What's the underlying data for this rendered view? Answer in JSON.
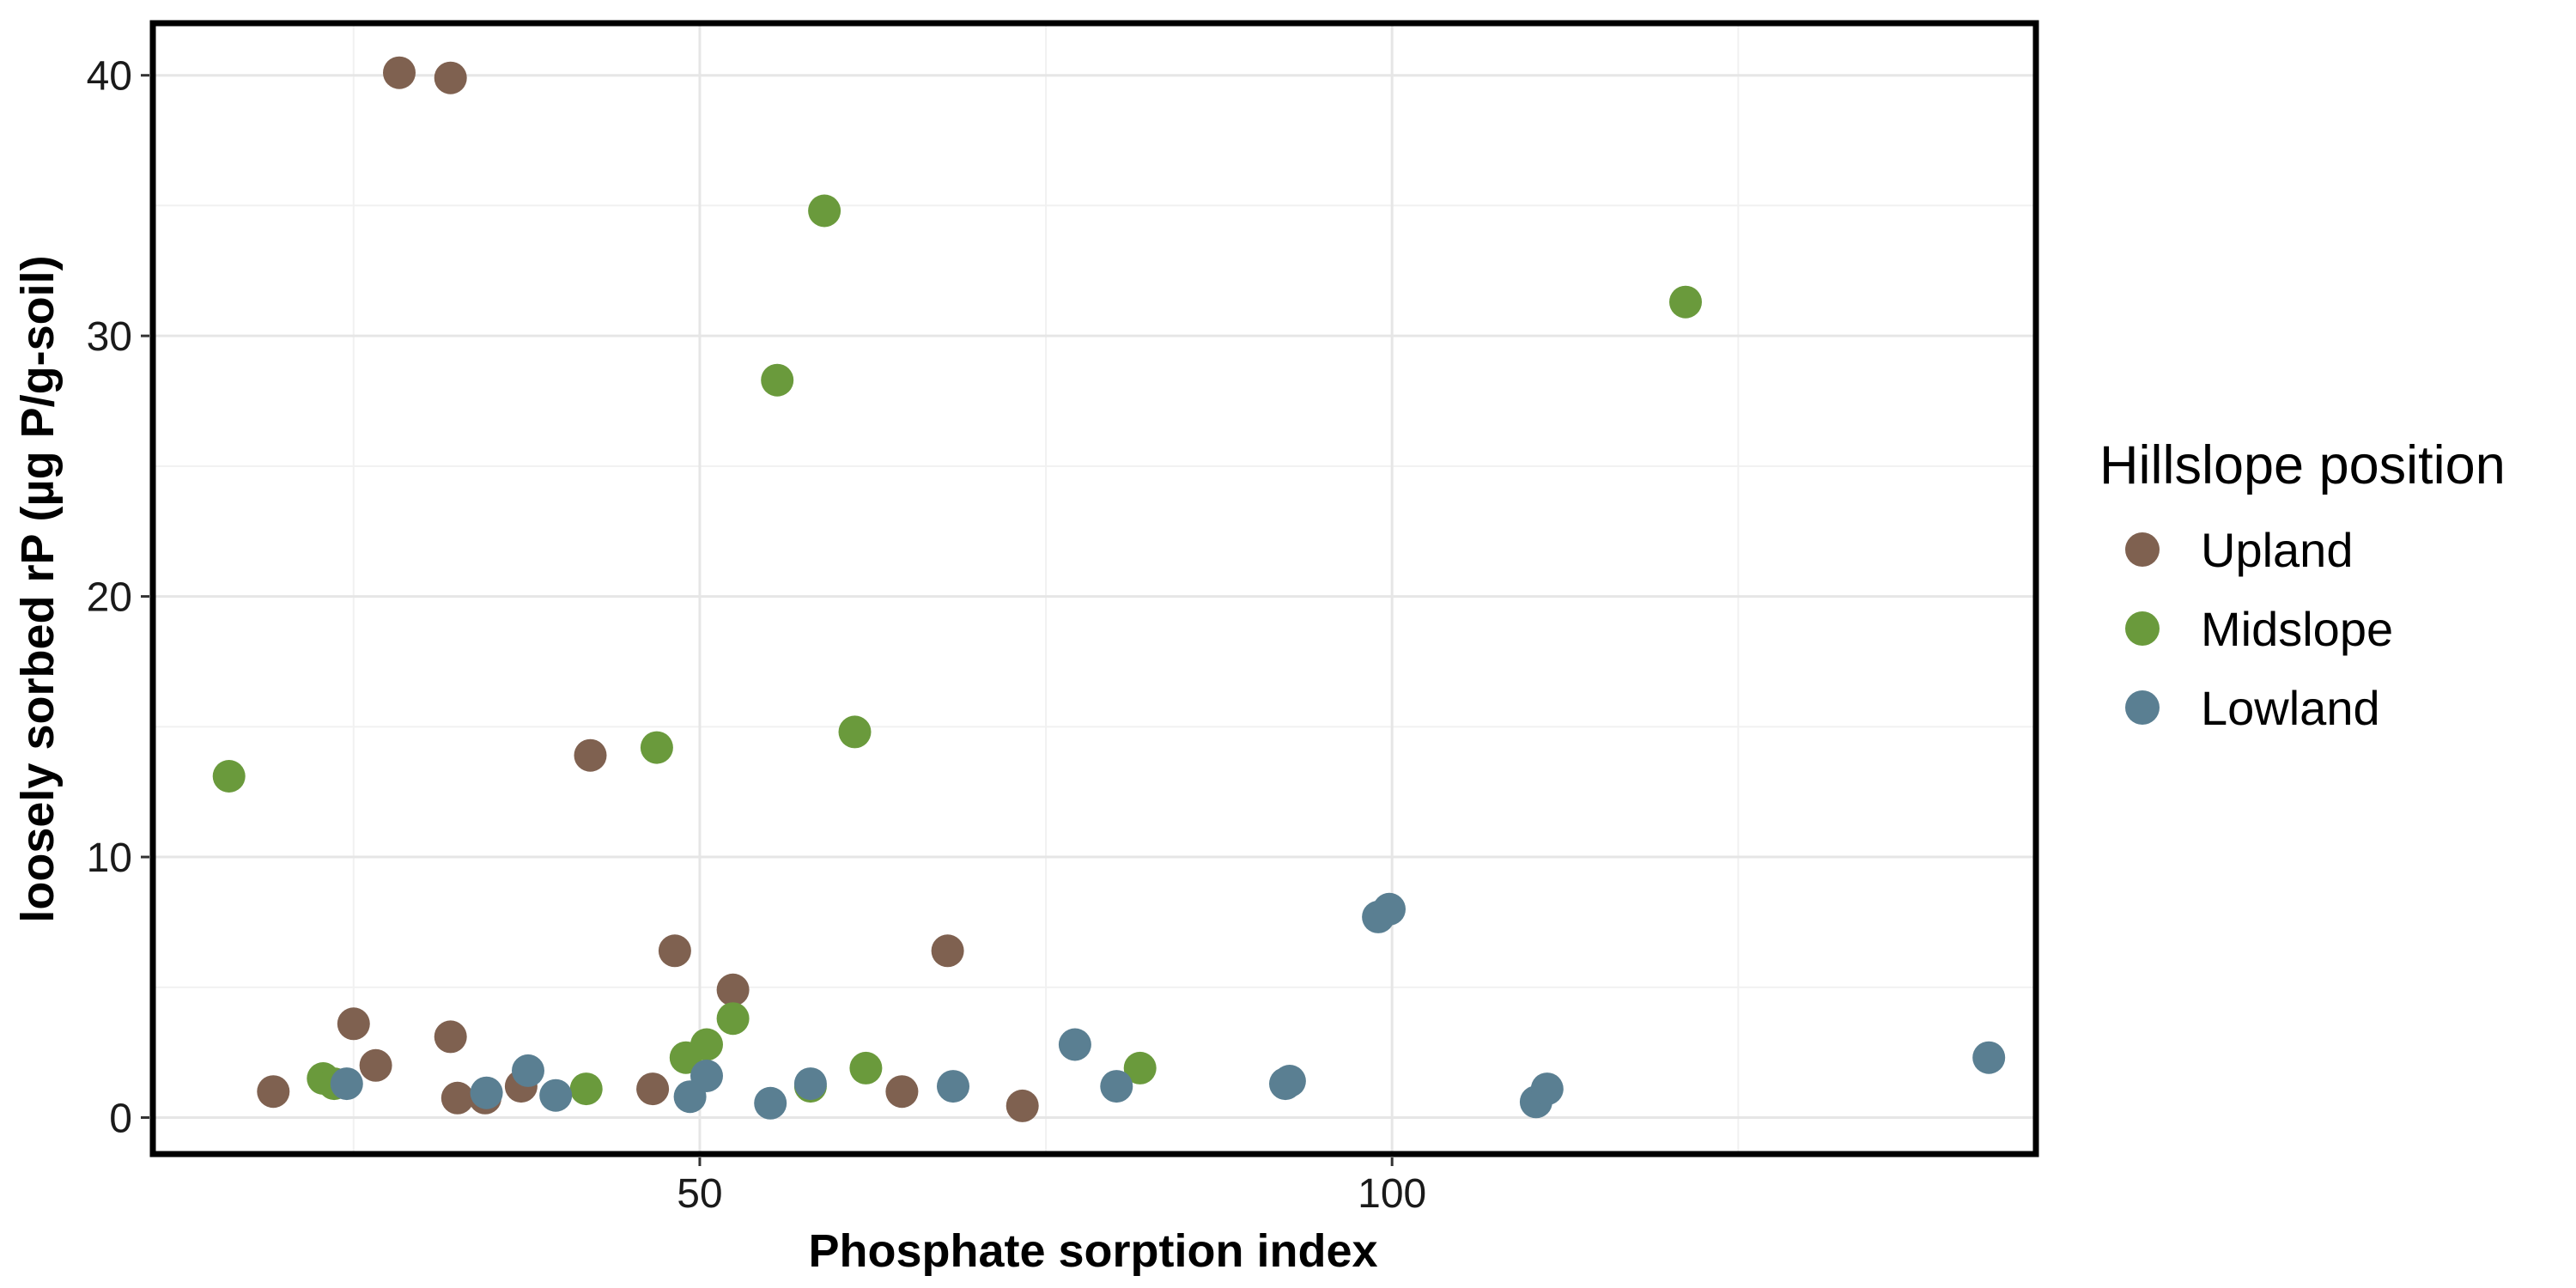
{
  "chart_data": {
    "type": "scatter",
    "xlabel": "Phosphate sorption index",
    "ylabel": "loosely sorbed rP (µg P/g-soil)",
    "xlim": [
      10.5,
      146.5
    ],
    "ylim": [
      -1.4,
      42
    ],
    "x_ticks": [
      50,
      100
    ],
    "y_ticks": [
      0,
      10,
      20,
      30,
      40
    ],
    "x_tick_labels": [
      "50",
      "100"
    ],
    "y_tick_labels": [
      "0",
      "10",
      "20",
      "30",
      "40"
    ],
    "grid": true,
    "legend_position": "right",
    "legend": {
      "title": "Hillslope position",
      "entries": [
        "Upland",
        "Midslope",
        "Lowland"
      ]
    },
    "colors": {
      "Upland": "#7f6150",
      "Midslope": "#6a9a3c",
      "Lowland": "#5a7f92"
    },
    "series": [
      {
        "name": "Upland",
        "color": "#7f6150",
        "points": [
          [
            28.3,
            40.1
          ],
          [
            32.0,
            39.9
          ],
          [
            42.1,
            13.9
          ],
          [
            48.2,
            6.4
          ],
          [
            52.4,
            4.9
          ],
          [
            67.9,
            6.4
          ],
          [
            25.0,
            3.6
          ],
          [
            32.0,
            3.1
          ],
          [
            26.6,
            2.0
          ],
          [
            19.2,
            1.0
          ],
          [
            32.5,
            0.75
          ],
          [
            34.5,
            0.75
          ],
          [
            37.1,
            1.2
          ],
          [
            46.6,
            1.1
          ],
          [
            64.6,
            1.0
          ],
          [
            73.3,
            0.45
          ]
        ]
      },
      {
        "name": "Midslope",
        "color": "#6a9a3c",
        "points": [
          [
            59.0,
            34.8
          ],
          [
            55.6,
            28.3
          ],
          [
            121.2,
            31.3
          ],
          [
            61.2,
            14.8
          ],
          [
            46.9,
            14.2
          ],
          [
            16.0,
            13.1
          ],
          [
            52.4,
            3.8
          ],
          [
            50.5,
            2.8
          ],
          [
            49.0,
            2.3
          ],
          [
            62.0,
            1.9
          ],
          [
            81.8,
            1.9
          ],
          [
            22.8,
            1.5
          ],
          [
            23.6,
            1.3
          ],
          [
            41.8,
            1.1
          ],
          [
            58.0,
            1.2
          ]
        ]
      },
      {
        "name": "Lowland",
        "color": "#5a7f92",
        "points": [
          [
            24.5,
            1.3
          ],
          [
            34.6,
            0.95
          ],
          [
            37.6,
            1.8
          ],
          [
            39.6,
            0.85
          ],
          [
            49.3,
            0.8
          ],
          [
            50.5,
            1.6
          ],
          [
            55.1,
            0.55
          ],
          [
            58.0,
            1.3
          ],
          [
            68.3,
            1.2
          ],
          [
            77.1,
            2.8
          ],
          [
            80.1,
            1.2
          ],
          [
            92.3,
            1.3
          ],
          [
            92.6,
            1.4
          ],
          [
            99.0,
            7.7
          ],
          [
            99.8,
            8.0
          ],
          [
            110.4,
            0.6
          ],
          [
            111.2,
            1.1
          ],
          [
            143.1,
            2.3
          ]
        ]
      }
    ]
  }
}
